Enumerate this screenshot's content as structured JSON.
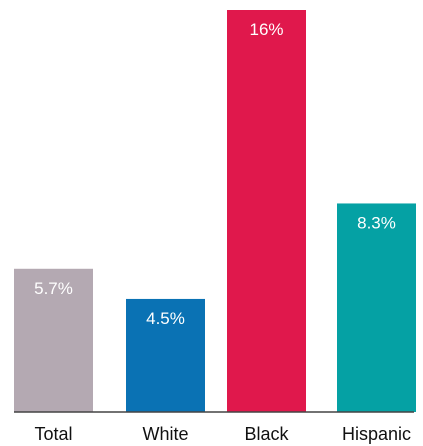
{
  "chart_data": {
    "type": "bar",
    "categories": [
      "Total",
      "White",
      "Black",
      "Hispanic"
    ],
    "values": [
      5.7,
      4.5,
      16,
      8.3
    ],
    "data_labels": [
      "5.7%",
      "4.5%",
      "16%",
      "8.3%"
    ],
    "colors": [
      "#b4a9b2",
      "#0a72b4",
      "#e0184c",
      "#05a1a4"
    ],
    "ylim": [
      0,
      16
    ],
    "grid": false,
    "legend": "none"
  }
}
